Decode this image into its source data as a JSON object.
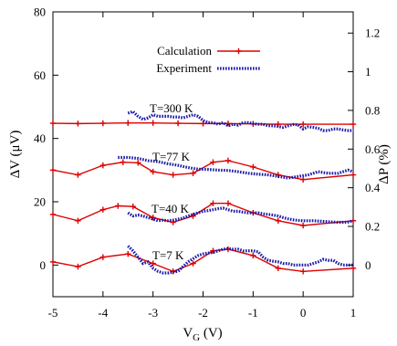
{
  "chart_data": {
    "type": "line",
    "xlabel_base": "V",
    "xlabel_sub": "G",
    "xlabel_unit": " (V)",
    "ylabel_left": "ΔV (μV)",
    "ylabel_right": "ΔP (%)",
    "xlim": [
      -5,
      1
    ],
    "ylim_left": [
      -10,
      80
    ],
    "ylim_right": [
      -0.1637,
      1.3097
    ],
    "x_ticks": [
      "-5",
      "-4",
      "-3",
      "-2",
      "-1",
      "0",
      "1"
    ],
    "y_left_ticks": [
      "0",
      "20",
      "40",
      "60",
      "80"
    ],
    "y_right_ticks": [
      "0",
      "0.2",
      "0.4",
      "0.6",
      "0.8",
      "1",
      "1.2"
    ],
    "legend": {
      "placement": "top-center",
      "calc_label": "Calculation",
      "exp_label": "Experiment"
    },
    "colors": {
      "calculation": "#dd0000",
      "experiment": "#1a1aaa"
    },
    "annotations": [
      {
        "label": "T=300 K"
      },
      {
        "label": "T=77 K"
      },
      {
        "label": "T=40 K"
      },
      {
        "label": "T=7 K"
      }
    ],
    "series": [
      {
        "name": "Calculation",
        "kind": "calculation",
        "curves": [
          {
            "x": [
              -5,
              -4.5,
              -4,
              -3.5,
              -3,
              -2.5,
              -2,
              -1.5,
              -1,
              -0.5,
              0,
              1
            ],
            "y": [
              44.8,
              44.7,
              44.8,
              44.9,
              44.9,
              44.8,
              44.7,
              44.7,
              44.6,
              44.5,
              44.5,
              44.5
            ]
          },
          {
            "x": [
              -5,
              -4.5,
              -4,
              -3.6,
              -3.3,
              -3,
              -2.6,
              -2.2,
              -1.8,
              -1.5,
              -1,
              -0.5,
              0,
              1
            ],
            "y": [
              30,
              28.5,
              31.5,
              32.5,
              32.3,
              29.5,
              28.5,
              29,
              32.5,
              33,
              31,
              28.5,
              27,
              28.5
            ]
          },
          {
            "x": [
              -5,
              -4.5,
              -4,
              -3.7,
              -3.4,
              -3,
              -2.6,
              -2.2,
              -1.8,
              -1.5,
              -1,
              -0.5,
              0,
              1
            ],
            "y": [
              16,
              14,
              17.5,
              18.7,
              18.5,
              15,
              13.5,
              15.5,
              19.5,
              19.5,
              16.5,
              14,
              12.5,
              14
            ]
          },
          {
            "x": [
              -5,
              -4.5,
              -4,
              -3.5,
              -3,
              -2.6,
              -2.2,
              -1.8,
              -1.5,
              -1,
              -0.5,
              0,
              1
            ],
            "y": [
              1,
              -0.5,
              2.5,
              3.5,
              0.5,
              -2,
              0.5,
              4.5,
              5,
              3,
              -1,
              -2,
              -1
            ]
          }
        ]
      },
      {
        "name": "Experiment",
        "kind": "experiment",
        "curves": [
          {
            "x": [
              -3.5,
              -3.4,
              -3.3,
              -3.2,
              -3.1,
              -3.0,
              -2.9,
              -2.8,
              -2.7,
              -2.6,
              -2.5,
              -2.4,
              -2.3,
              -2.2,
              -2.1,
              -2.0,
              -1.9,
              -1.8,
              -1.7,
              -1.6,
              -1.5,
              -1.4,
              -1.3,
              -1.2,
              -1.1,
              -1.0,
              -0.9,
              -0.8,
              -0.7,
              -0.6,
              -0.5,
              -0.4,
              -0.3,
              -0.2,
              -0.1,
              0.0,
              0.1,
              0.2,
              0.3,
              0.4,
              0.5,
              0.6,
              0.7,
              0.8,
              0.9,
              1.0
            ],
            "y": [
              48,
              48.5,
              47,
              46,
              46.5,
              47.5,
              47,
              47,
              47,
              46.8,
              46.8,
              46.5,
              47,
              47.5,
              47,
              45.7,
              45,
              45,
              44.5,
              45,
              44,
              44.5,
              44.2,
              45,
              45,
              44.7,
              44.5,
              44.5,
              44,
              44,
              43.8,
              43.5,
              44,
              44.4,
              44.3,
              43,
              43.7,
              43.5,
              43.2,
              42.5,
              42.5,
              43,
              43,
              42.7,
              42.5,
              42.5
            ]
          },
          {
            "x": [
              -3.7,
              -3.5,
              -3.3,
              -3.1,
              -2.9,
              -2.7,
              -2.5,
              -2.3,
              -2.1,
              -1.9,
              -1.7,
              -1.5,
              -1.3,
              -1.1,
              -0.9,
              -0.7,
              -0.5,
              -0.3,
              -0.1,
              0.1,
              0.3,
              0.5,
              0.7,
              0.9,
              1.0
            ],
            "y": [
              34,
              34,
              33.7,
              33,
              32.7,
              32,
              31.5,
              30.8,
              30.3,
              30.2,
              30,
              29.9,
              29.5,
              29,
              28.7,
              28.5,
              28,
              27.5,
              28,
              28.5,
              29.5,
              29,
              29,
              30,
              29.5
            ]
          },
          {
            "x": [
              -3.5,
              -3.4,
              -3.3,
              -3.2,
              -3.1,
              -3.0,
              -2.9,
              -2.8,
              -2.7,
              -2.6,
              -2.5,
              -2.4,
              -2.3,
              -2.2,
              -2.1,
              -2.0,
              -1.9,
              -1.8,
              -1.7,
              -1.6,
              -1.5,
              -1.4,
              -1.3,
              -1.2,
              -1.1,
              -1.0,
              -0.9,
              -0.8,
              -0.7,
              -0.6,
              -0.5,
              -0.4,
              -0.3,
              -0.2,
              -0.1,
              0.0,
              0.1,
              0.2,
              0.3,
              0.4,
              0.5,
              0.6,
              0.7,
              0.8,
              0.9,
              1.0
            ],
            "y": [
              16.5,
              15.5,
              15.8,
              15.5,
              15,
              14.5,
              14,
              14.2,
              14,
              14.2,
              14.5,
              14.8,
              15.5,
              16,
              16.5,
              17,
              17.2,
              17.5,
              17.8,
              18,
              17.5,
              17,
              17,
              16.7,
              16.5,
              16.5,
              16.5,
              16.2,
              16,
              15.8,
              15.5,
              15,
              14.6,
              14.3,
              14.1,
              14,
              14,
              14,
              13.9,
              13.8,
              13.7,
              13.6,
              13.5,
              13.5,
              13.6,
              14
            ]
          },
          {
            "x": [
              -3.5,
              -3.4,
              -3.3,
              -3.2,
              -3.1,
              -3.0,
              -2.9,
              -2.8,
              -2.7,
              -2.6,
              -2.5,
              -2.4,
              -2.3,
              -2.2,
              -2.1,
              -2.0,
              -1.9,
              -1.8,
              -1.7,
              -1.6,
              -1.5,
              -1.4,
              -1.3,
              -1.2,
              -1.1,
              -1.0,
              -0.9,
              -0.8,
              -0.7,
              -0.6,
              -0.5,
              -0.4,
              -0.3,
              -0.2,
              -0.1,
              0.0,
              0.1,
              0.2,
              0.3,
              0.4,
              0.5,
              0.6,
              0.7,
              0.8,
              0.9,
              1.0
            ],
            "y": [
              6,
              4.5,
              2.5,
              0.5,
              1,
              -1,
              -2,
              -2.5,
              -2.5,
              -2.2,
              -2,
              -0.5,
              1,
              2,
              3,
              3.5,
              3.8,
              4,
              4.5,
              5,
              5.2,
              5,
              5,
              4.5,
              4.5,
              4.5,
              4.2,
              2.5,
              1.5,
              1.2,
              1,
              0.5,
              0.5,
              0,
              0,
              0,
              0,
              0.5,
              1,
              1.8,
              1.5,
              1.5,
              0.5,
              0,
              0,
              0
            ]
          }
        ]
      }
    ]
  }
}
